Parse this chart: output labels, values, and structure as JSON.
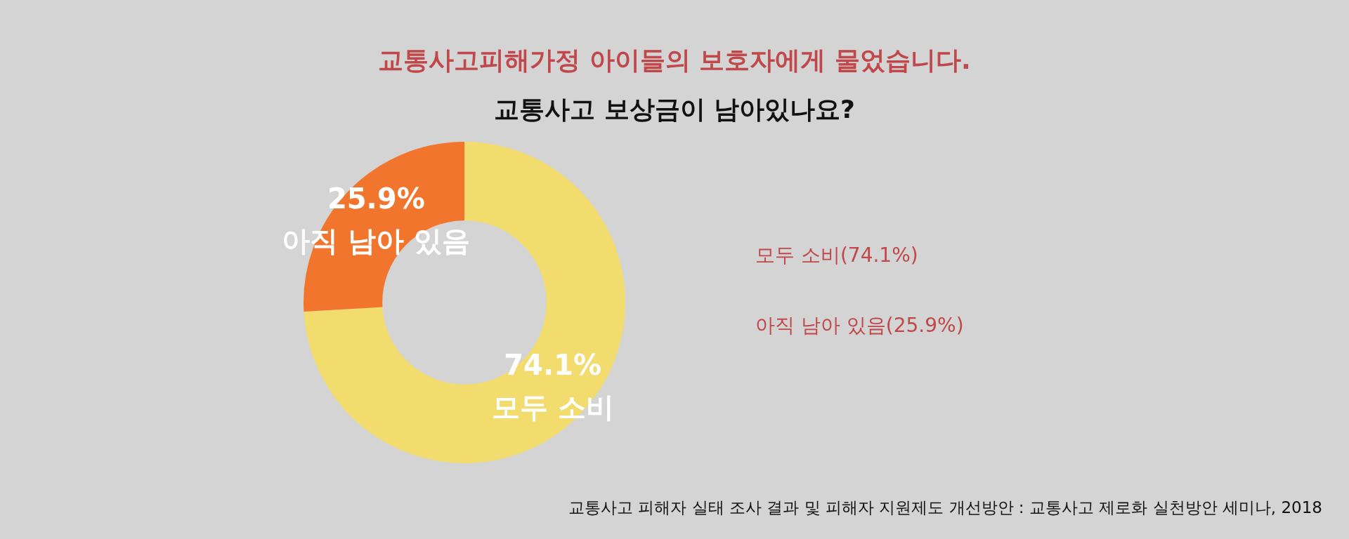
{
  "chart_data": {
    "type": "donut",
    "title": "교통사고피해가정 아이들의 보호자에게 물었습니다.",
    "subtitle": "교통사고 보상금이 남아있나요?",
    "categories": [
      "모두 소비",
      "아직 남아 있음"
    ],
    "values": [
      74.1,
      25.9
    ],
    "colors": [
      "#f2dc6e",
      "#f2752d"
    ],
    "value_labels": [
      "74.1%",
      "25.9%"
    ],
    "annotations": [
      "모두 소비(74.1%)",
      "아직 남아 있음(25.9%)",
      "교통사고 피해자 실태 조사 결과 및 피해자 지원제도 개선방안 : 교통사고 제로화 실천방안 세미나, 2018"
    ]
  }
}
